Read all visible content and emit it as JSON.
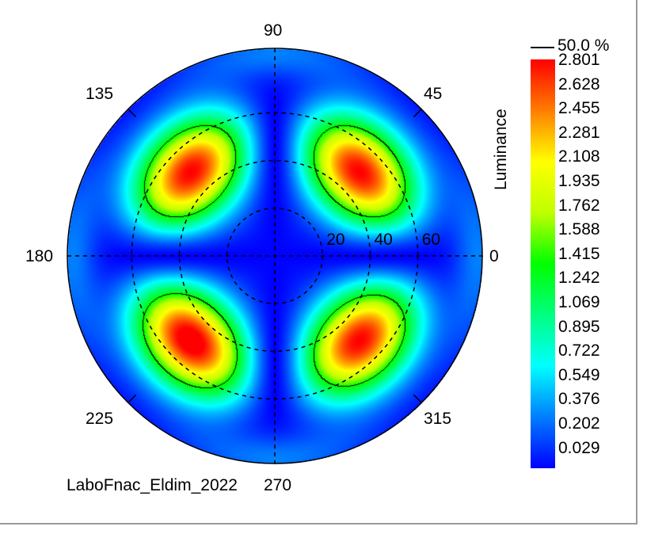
{
  "chart_data": {
    "type": "heatmap",
    "subtype": "polar",
    "quantity": "Luminance",
    "footer_label": "LaboFnac_Eldim_2022",
    "azimuth_labels": [
      "0",
      "45",
      "90",
      "135",
      "180",
      "225",
      "270",
      "315"
    ],
    "radial_labels": [
      "20",
      "40",
      "60"
    ],
    "radial_ticks": [
      20,
      40,
      60
    ],
    "contour": {
      "label": "50.0 %",
      "level": 1.415,
      "color": "#000000"
    },
    "colorbar": {
      "title": "Luminance",
      "ticks": [
        "2.801",
        "2.628",
        "2.455",
        "2.281",
        "2.108",
        "1.935",
        "1.762",
        "1.588",
        "1.415",
        "1.242",
        "1.069",
        "0.895",
        "0.722",
        "0.549",
        "0.376",
        "0.202",
        "0.029"
      ],
      "min": 0.029,
      "max": 2.801,
      "colors": [
        "#0000ff",
        "#0080ff",
        "#00ffff",
        "#00ff80",
        "#00ff00",
        "#c0ff00",
        "#ffff00",
        "#ff8000",
        "#ff0000"
      ]
    },
    "peaks_azimuth_deg": [
      45,
      135,
      225,
      315
    ],
    "peak_polar_deg": 50,
    "grid": "dashed"
  }
}
